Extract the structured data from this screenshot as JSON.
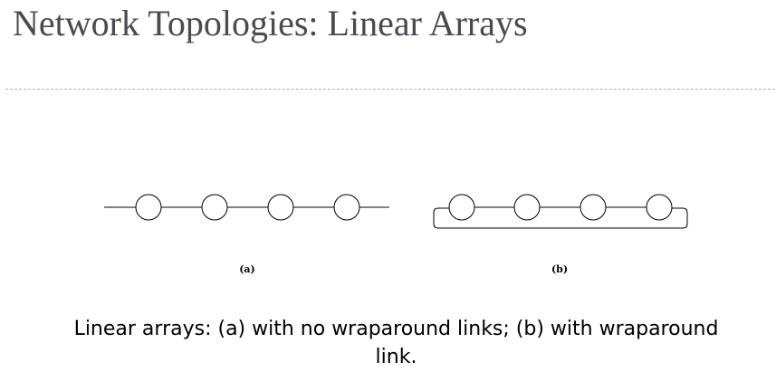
{
  "slide": {
    "title": "Network Topologies: Linear Arrays",
    "caption": "Linear arrays: (a) with no wraparound links; (b) with wraparound link."
  },
  "figure": {
    "diagram_a": {
      "label": "(a)",
      "node_count": 4,
      "wraparound": false
    },
    "diagram_b": {
      "label": "(b)",
      "node_count": 4,
      "wraparound": true
    }
  }
}
